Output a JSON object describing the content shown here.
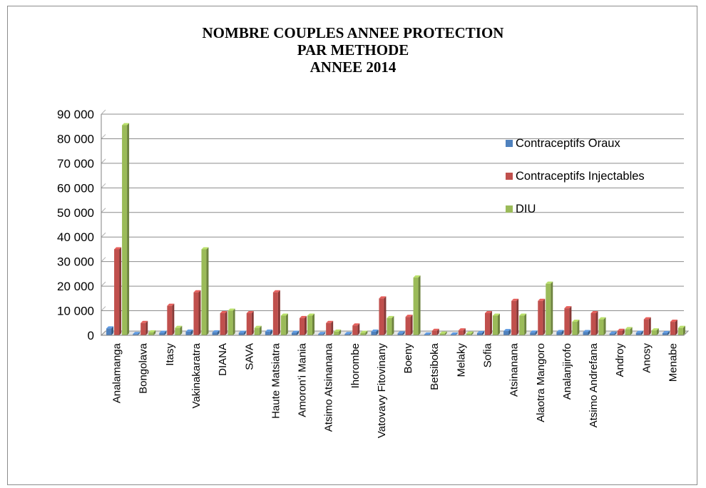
{
  "chart_data": {
    "type": "bar",
    "title": [
      "NOMBRE COUPLES ANNEE  PROTECTION",
      "PAR METHODE",
      "ANNEE 2014"
    ],
    "xlabel": "",
    "ylabel": "",
    "ylim": [
      0,
      90000
    ],
    "yticks": [
      0,
      10000,
      20000,
      30000,
      40000,
      50000,
      60000,
      70000,
      80000,
      90000
    ],
    "ytick_labels": [
      "0",
      "10 000",
      "20 000",
      "30 000",
      "40 000",
      "50 000",
      "60 000",
      "70 000",
      "80 000",
      "90 000"
    ],
    "grid": true,
    "legend_position": "top-right",
    "categories": [
      "Analamanga",
      "Bongolava",
      "Itasy",
      "Vakinakaratra",
      "DIANA",
      "SAVA",
      "Haute Matsiatra",
      "Amoron'i Mania",
      "Atsimo Atsinanana",
      "Ihorombe",
      "Vatovavy Fitovinany",
      "Boeny",
      "Betsiboka",
      "Melaky",
      "Sofia",
      "Atsinanana",
      "Alaotra Mangoro",
      "Analanjirofo",
      "Atsimo Andrefana",
      "Androy",
      "Anosy",
      "Menabe"
    ],
    "series": [
      {
        "name": "Contraceptifs Oraux",
        "color": "#4f81bd",
        "values": [
          2800,
          500,
          1000,
          1500,
          1200,
          1000,
          1500,
          1000,
          500,
          500,
          1500,
          800,
          300,
          300,
          900,
          1700,
          1100,
          1300,
          1300,
          700,
          1000,
          900
        ]
      },
      {
        "name": "Contraceptifs Injectables",
        "color": "#c0504d",
        "values": [
          35000,
          5000,
          12000,
          17500,
          9000,
          9000,
          17500,
          7000,
          5000,
          4000,
          15000,
          7500,
          1800,
          2000,
          9000,
          14000,
          14000,
          11000,
          9000,
          1800,
          6500,
          5500
        ]
      },
      {
        "name": "DIU",
        "color": "#9bbb59",
        "values": [
          85500,
          1200,
          3000,
          35000,
          10000,
          3000,
          8000,
          8000,
          1500,
          1000,
          7000,
          23500,
          700,
          700,
          8000,
          8000,
          21000,
          5500,
          6500,
          2500,
          2000,
          3000
        ]
      }
    ]
  }
}
